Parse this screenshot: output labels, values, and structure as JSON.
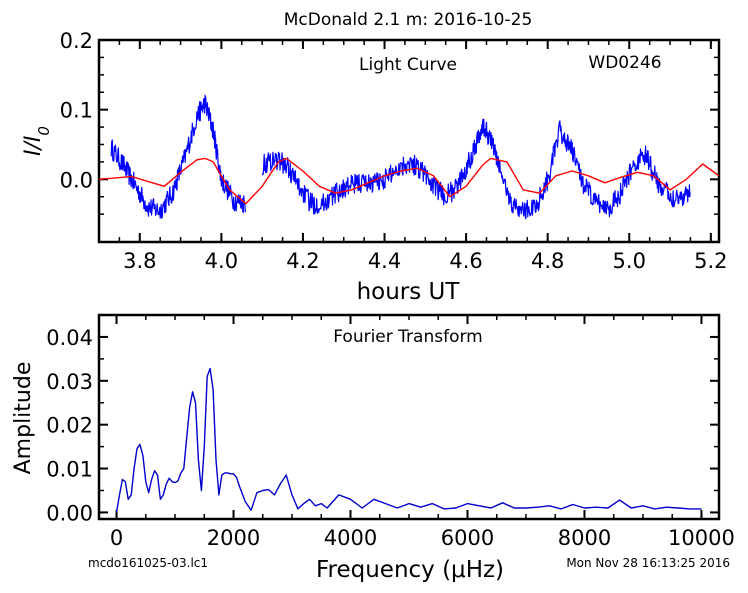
{
  "figure": {
    "title": "McDonald 2.1 m:  2016-10-25",
    "footer_left": "mcdo161025-03.lc1",
    "footer_right": "Mon Nov 28 16:13:25 2016"
  },
  "chart_data": [
    {
      "type": "line",
      "annotation": "Light Curve",
      "object_label": "WD0246",
      "xlabel": "hours UT",
      "ylabel": "I/I0",
      "xlim": [
        3.7,
        5.22
      ],
      "ylim": [
        -0.09,
        0.2
      ],
      "xticks": [
        "3.8",
        "4.0",
        "4.2",
        "4.4",
        "4.6",
        "4.8",
        "5.0",
        "5.2"
      ],
      "yticks": [
        "0.0",
        "0.1",
        "0.2"
      ],
      "grid": false,
      "series": [
        {
          "color": "#0000ff",
          "segments": [
            {
              "x": [
                3.73,
                3.76,
                3.79,
                3.82,
                3.85,
                3.88,
                3.91,
                3.94,
                3.96,
                3.98,
                4.0,
                4.03,
                4.06
              ],
              "y": [
                0.045,
                0.02,
                -0.01,
                -0.04,
                -0.045,
                -0.02,
                0.03,
                0.09,
                0.11,
                0.07,
                0.0,
                -0.03,
                -0.035
              ]
            },
            {
              "x": [
                4.1,
                4.13,
                4.16,
                4.19,
                4.22,
                4.25,
                4.28,
                4.31,
                4.34,
                4.37,
                4.4,
                4.43,
                4.46,
                4.49,
                4.52,
                4.55,
                4.58,
                4.61,
                4.64,
                4.66,
                4.68,
                4.71,
                4.74,
                4.77,
                4.8,
                4.83,
                4.86,
                4.89,
                4.92,
                4.95,
                4.98,
                5.01,
                5.04,
                5.07,
                5.1,
                5.13,
                5.15
              ],
              "y": [
                0.02,
                0.03,
                0.02,
                -0.01,
                -0.035,
                -0.035,
                -0.02,
                -0.01,
                -0.005,
                -0.005,
                0.0,
                0.015,
                0.025,
                0.015,
                -0.01,
                -0.025,
                -0.01,
                0.03,
                0.075,
                0.06,
                0.02,
                -0.035,
                -0.045,
                -0.04,
                0.0,
                0.07,
                0.04,
                -0.01,
                -0.035,
                -0.04,
                -0.02,
                0.02,
                0.035,
                -0.005,
                -0.025,
                -0.025,
                -0.015
              ]
            }
          ]
        },
        {
          "color": "#ff0000",
          "x": [
            3.7,
            3.74,
            3.78,
            3.82,
            3.86,
            3.9,
            3.94,
            3.96,
            3.98,
            4.02,
            4.06,
            4.1,
            4.14,
            4.16,
            4.2,
            4.24,
            4.28,
            4.32,
            4.36,
            4.4,
            4.44,
            4.48,
            4.52,
            4.56,
            4.6,
            4.64,
            4.66,
            4.7,
            4.74,
            4.78,
            4.82,
            4.86,
            4.9,
            4.94,
            4.98,
            5.02,
            5.06,
            5.1,
            5.14,
            5.18,
            5.22
          ],
          "y": [
            0.0,
            0.002,
            0.004,
            -0.003,
            -0.01,
            0.01,
            0.028,
            0.03,
            0.025,
            -0.015,
            -0.035,
            -0.01,
            0.025,
            0.03,
            0.012,
            -0.01,
            -0.02,
            -0.015,
            -0.005,
            0.005,
            0.012,
            0.016,
            0.005,
            -0.025,
            -0.01,
            0.02,
            0.03,
            0.025,
            -0.015,
            -0.02,
            0.005,
            0.012,
            0.005,
            -0.005,
            0.003,
            0.01,
            0.005,
            -0.015,
            0.0,
            0.022,
            0.005
          ]
        }
      ]
    },
    {
      "type": "line",
      "annotation": "Fourier Transform",
      "xlabel": "Frequency (μHz)",
      "ylabel": "Amplitude",
      "xlim": [
        -300,
        10300
      ],
      "ylim": [
        -0.0015,
        0.045
      ],
      "xticks": [
        "0",
        "2000",
        "4000",
        "6000",
        "8000",
        "10000"
      ],
      "yticks": [
        "0.00",
        "0.01",
        "0.02",
        "0.03",
        "0.04"
      ],
      "grid": false,
      "series": [
        {
          "color": "#0000cc",
          "x": [
            0,
            50,
            100,
            150,
            200,
            250,
            300,
            350,
            400,
            450,
            500,
            550,
            600,
            650,
            700,
            750,
            800,
            850,
            900,
            950,
            1000,
            1050,
            1100,
            1150,
            1200,
            1250,
            1300,
            1350,
            1400,
            1450,
            1500,
            1550,
            1600,
            1650,
            1700,
            1750,
            1800,
            1850,
            1900,
            1950,
            2000,
            2050,
            2100,
            2200,
            2300,
            2400,
            2500,
            2600,
            2700,
            2800,
            2900,
            3000,
            3100,
            3200,
            3300,
            3400,
            3500,
            3600,
            3800,
            4000,
            4200,
            4400,
            4600,
            4800,
            5000,
            5200,
            5400,
            5600,
            5800,
            6000,
            6200,
            6400,
            6600,
            6800,
            7000,
            7200,
            7400,
            7600,
            7800,
            8000,
            8200,
            8400,
            8600,
            8800,
            9000,
            9200,
            9400,
            9600,
            9800,
            10000
          ],
          "y": [
            0.0,
            0.004,
            0.0075,
            0.007,
            0.003,
            0.004,
            0.01,
            0.0145,
            0.0155,
            0.013,
            0.007,
            0.0045,
            0.0075,
            0.0095,
            0.0085,
            0.003,
            0.004,
            0.0065,
            0.0078,
            0.007,
            0.0068,
            0.0072,
            0.009,
            0.01,
            0.017,
            0.024,
            0.0275,
            0.025,
            0.012,
            0.005,
            0.015,
            0.031,
            0.0328,
            0.028,
            0.012,
            0.004,
            0.0085,
            0.009,
            0.009,
            0.0088,
            0.0088,
            0.008,
            0.006,
            0.0025,
            0.0005,
            0.0045,
            0.005,
            0.0052,
            0.004,
            0.0065,
            0.0085,
            0.004,
            0.0008,
            0.002,
            0.003,
            0.0015,
            0.002,
            0.001,
            0.004,
            0.003,
            0.001,
            0.003,
            0.002,
            0.001,
            0.002,
            0.0012,
            0.002,
            0.0008,
            0.001,
            0.002,
            0.0015,
            0.001,
            0.0022,
            0.001,
            0.001,
            0.0012,
            0.0015,
            0.0008,
            0.0018,
            0.001,
            0.0012,
            0.001,
            0.0028,
            0.001,
            0.0015,
            0.0008,
            0.0012,
            0.001,
            0.0008,
            0.0008
          ]
        }
      ]
    }
  ]
}
